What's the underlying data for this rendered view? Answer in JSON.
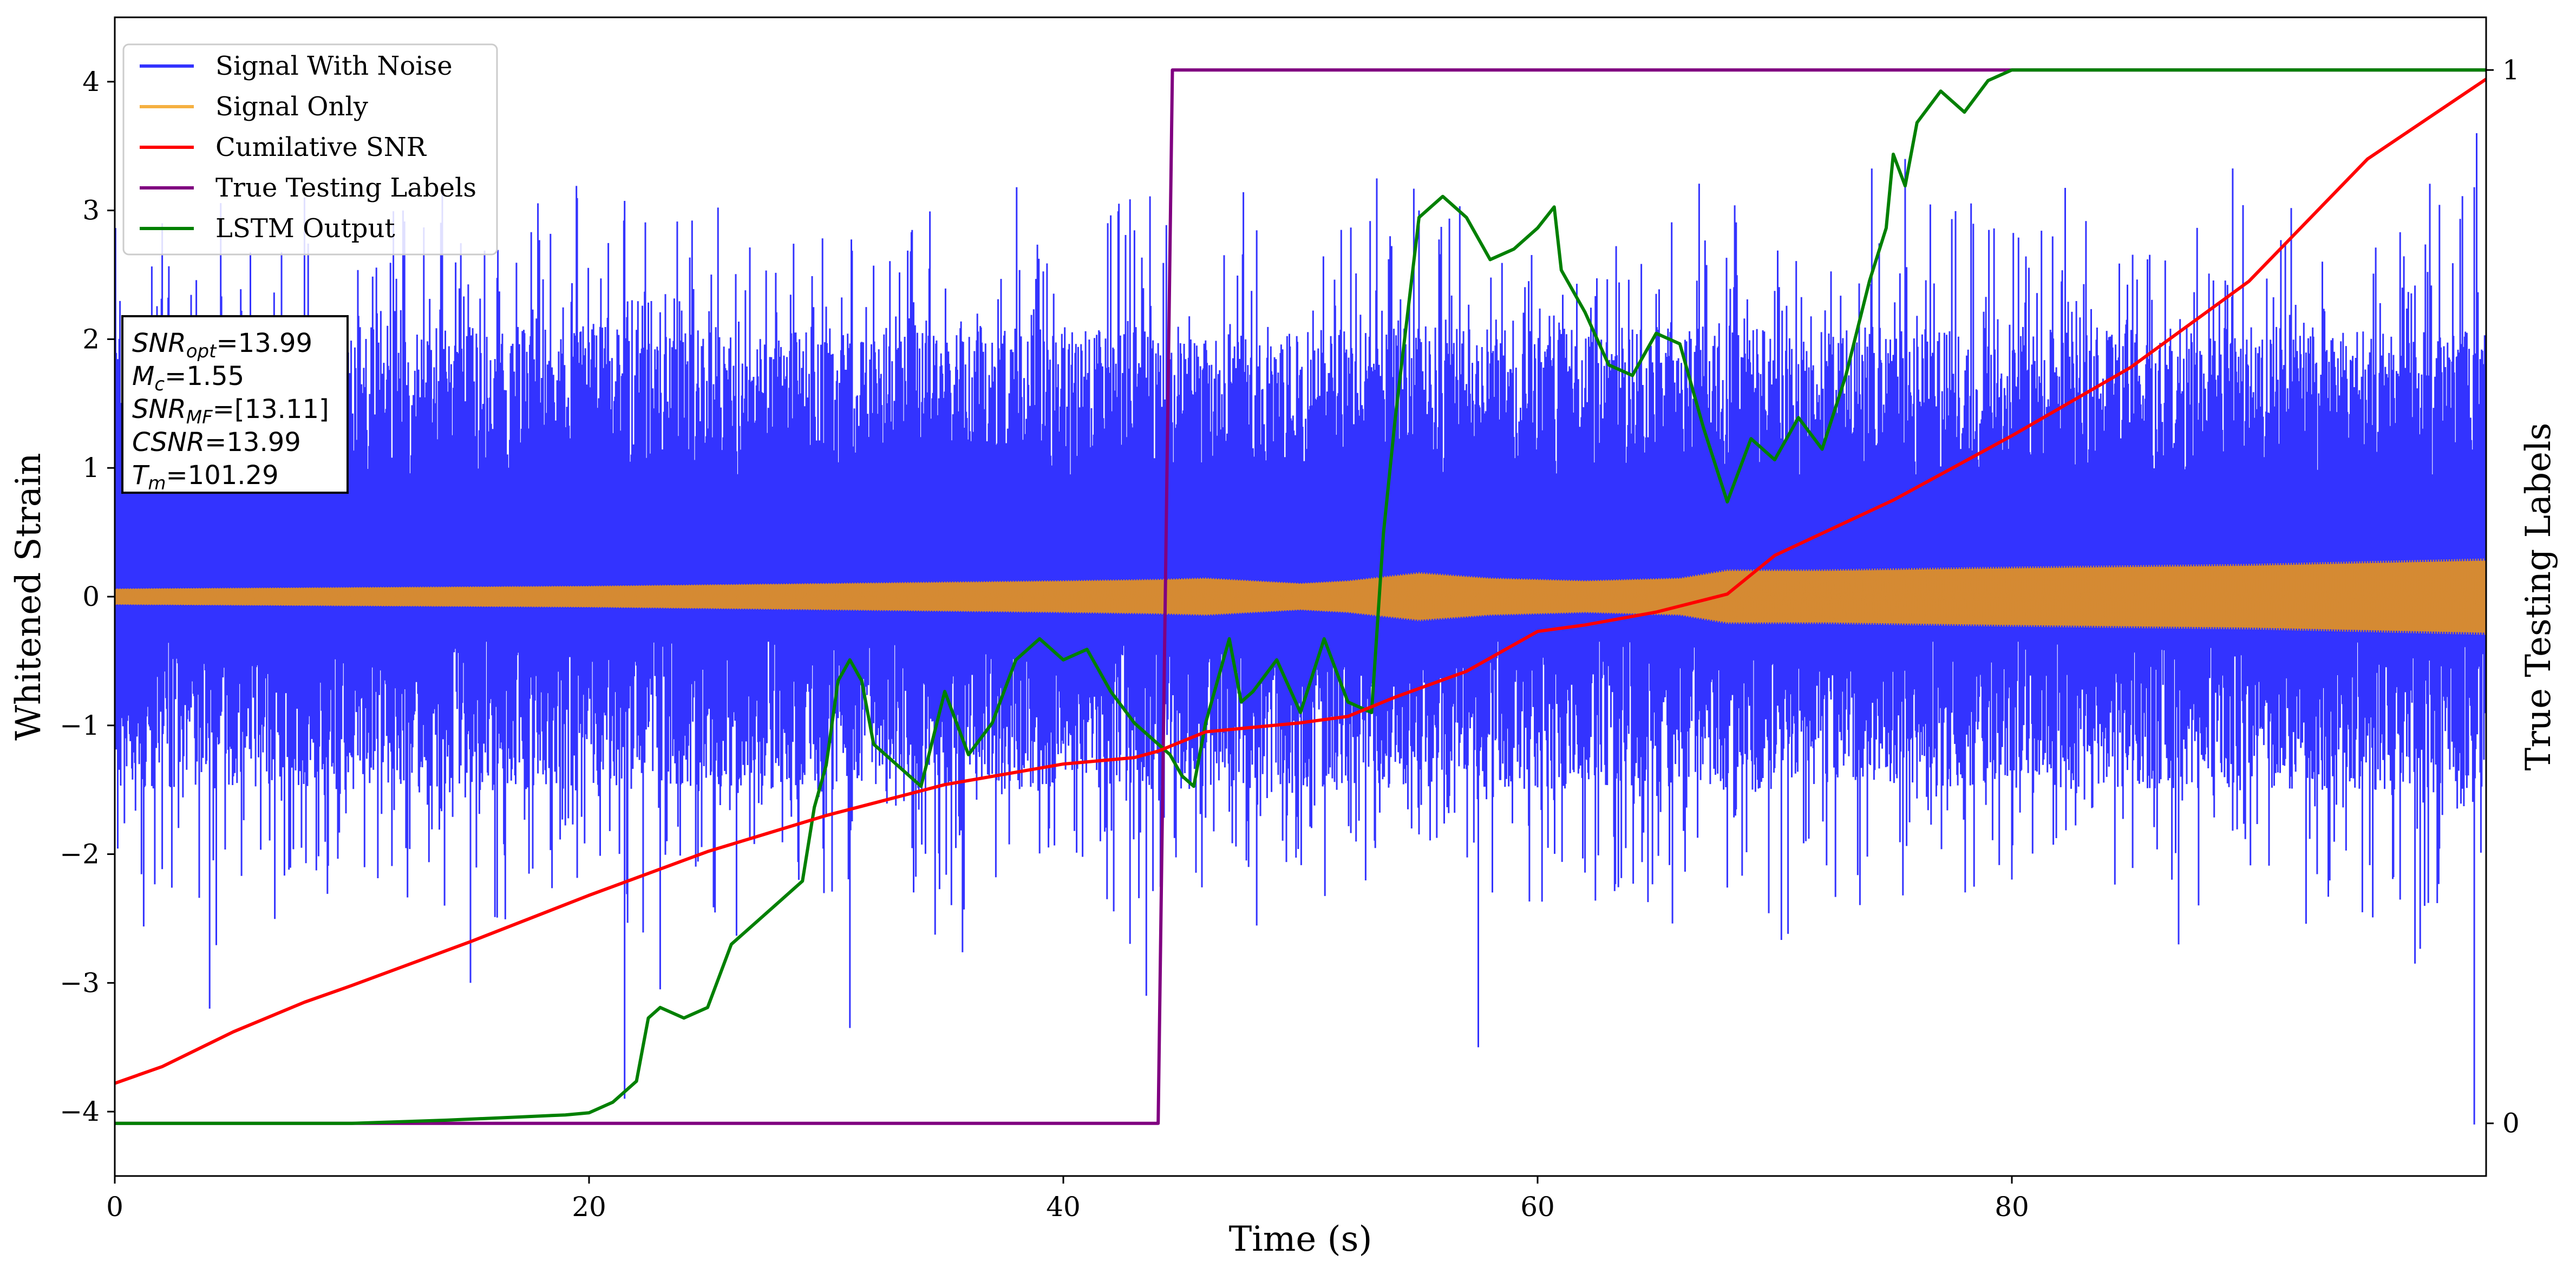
{
  "chart_data": {
    "type": "line",
    "xlabel": "Time (s)",
    "ylabel": "Whitened Strain",
    "y2label": "True Testing Labels",
    "xlim": [
      0,
      100
    ],
    "ylim": [
      -4.5,
      4.5
    ],
    "y2lim": [
      -0.05,
      1.05
    ],
    "xticks": [
      0,
      20,
      40,
      60,
      80
    ],
    "yticks": [
      -4,
      -3,
      -2,
      -1,
      0,
      1,
      2,
      3,
      4
    ],
    "yticklabels": [
      "−4",
      "−3",
      "−2",
      "−1",
      "0",
      "1",
      "2",
      "3",
      "4"
    ],
    "y2ticks": [
      0,
      1
    ],
    "legend_position": "upper-left",
    "info_box_position": "left",
    "info_lines": [
      {
        "var": "SNR",
        "sub": "opt",
        "value": "=13.99"
      },
      {
        "var": "M",
        "sub": "c",
        "value": "=1.55"
      },
      {
        "var": "SNR",
        "sub": "MF",
        "value": "=[13.11]"
      },
      {
        "var": "CSNR",
        "sub": "",
        "value": "=13.99"
      },
      {
        "var": "T",
        "sub": "m",
        "value": "=101.29"
      }
    ],
    "series": [
      {
        "name": "Signal With Noise",
        "color": "#3333ff",
        "axis": "left",
        "description_envelope": {
          "core_band": [
            -0.35,
            0.95
          ],
          "peak_range": [
            -4.1,
            3.6
          ]
        }
      },
      {
        "name": "Signal Only",
        "color": "#f5b041",
        "render_color": "#d58a33",
        "axis": "left",
        "amplitude_envelope": {
          "x": [
            0,
            10,
            20,
            30,
            40,
            44,
            46,
            50,
            52,
            55,
            58,
            62,
            66,
            68,
            72,
            80,
            90,
            100
          ],
          "amp": [
            0.06,
            0.07,
            0.08,
            0.1,
            0.12,
            0.13,
            0.14,
            0.1,
            0.12,
            0.18,
            0.14,
            0.12,
            0.14,
            0.2,
            0.2,
            0.22,
            0.24,
            0.28
          ]
        }
      },
      {
        "name": "Cumilative SNR",
        "color": "#ff0000",
        "axis": "left",
        "x": [
          0,
          2,
          5,
          8,
          10,
          15,
          20,
          25,
          30,
          35,
          40,
          43,
          44,
          46,
          50,
          52,
          54,
          57,
          60,
          62,
          65,
          68,
          70,
          75,
          80,
          85,
          90,
          95,
          100
        ],
        "y": [
          -3.78,
          -3.65,
          -3.38,
          -3.15,
          -3.02,
          -2.68,
          -2.32,
          -1.98,
          -1.7,
          -1.46,
          -1.3,
          -1.25,
          -1.2,
          -1.05,
          -0.98,
          -0.93,
          -0.78,
          -0.58,
          -0.27,
          -0.22,
          -0.12,
          0.02,
          0.32,
          0.75,
          1.25,
          1.78,
          2.45,
          3.4,
          4.02
        ]
      },
      {
        "name": "True Testing Labels",
        "color": "#800080",
        "axis": "right",
        "x": [
          0,
          44,
          44.6,
          100
        ],
        "y": [
          0,
          0,
          1,
          1
        ]
      },
      {
        "name": "LSTM Output",
        "color": "#008000",
        "axis": "right",
        "x": [
          0,
          10,
          14,
          17,
          18,
          19,
          20,
          21,
          22,
          22.5,
          23,
          24,
          25,
          26,
          27,
          28,
          29,
          29.5,
          30,
          30.5,
          31,
          31.5,
          32,
          33,
          34,
          35,
          36,
          37,
          38,
          39,
          40,
          41,
          42,
          43,
          44,
          44.5,
          45,
          45.5,
          46,
          47,
          47.5,
          48,
          49,
          50,
          51,
          52,
          53,
          53.5,
          54,
          55,
          56,
          57,
          58,
          59,
          60,
          60.7,
          61,
          62,
          63,
          64,
          65,
          66,
          67,
          68,
          69,
          70,
          71,
          72,
          73,
          74,
          74.7,
          75,
          75.5,
          76,
          77,
          78,
          79,
          80,
          90,
          100
        ],
        "y": [
          0,
          0,
          0.003,
          0.006,
          0.007,
          0.008,
          0.01,
          0.02,
          0.04,
          0.1,
          0.11,
          0.1,
          0.11,
          0.17,
          0.19,
          0.21,
          0.23,
          0.3,
          0.34,
          0.42,
          0.44,
          0.42,
          0.36,
          0.34,
          0.32,
          0.41,
          0.35,
          0.38,
          0.44,
          0.46,
          0.44,
          0.45,
          0.41,
          0.38,
          0.36,
          0.35,
          0.33,
          0.32,
          0.38,
          0.46,
          0.4,
          0.41,
          0.44,
          0.39,
          0.46,
          0.4,
          0.39,
          0.56,
          0.67,
          0.86,
          0.88,
          0.86,
          0.82,
          0.83,
          0.85,
          0.87,
          0.81,
          0.77,
          0.72,
          0.71,
          0.75,
          0.74,
          0.66,
          0.59,
          0.65,
          0.63,
          0.67,
          0.64,
          0.71,
          0.8,
          0.85,
          0.92,
          0.89,
          0.95,
          0.98,
          0.96,
          0.99,
          1.0,
          1.0,
          1.0
        ]
      }
    ]
  }
}
